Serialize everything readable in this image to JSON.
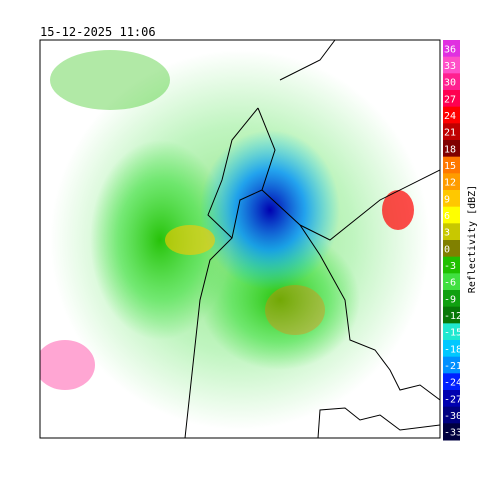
{
  "title": "15-12-2025 11:06",
  "colorbar": {
    "label": "Reflectivity [dBZ]",
    "levels": [
      {
        "value": 36,
        "color": "#e030e0"
      },
      {
        "value": 33,
        "color": "#ff50c8"
      },
      {
        "value": 30,
        "color": "#ff2090"
      },
      {
        "value": 27,
        "color": "#ff0050"
      },
      {
        "value": 24,
        "color": "#ff0000"
      },
      {
        "value": 21,
        "color": "#c00000"
      },
      {
        "value": 18,
        "color": "#800000"
      },
      {
        "value": 15,
        "color": "#ff7800"
      },
      {
        "value": 12,
        "color": "#ff9c00"
      },
      {
        "value": 9,
        "color": "#ffc800"
      },
      {
        "value": 6,
        "color": "#ffff00"
      },
      {
        "value": 3,
        "color": "#c8c800"
      },
      {
        "value": 0,
        "color": "#808000"
      },
      {
        "value": -3,
        "color": "#20c000"
      },
      {
        "value": -6,
        "color": "#40e040"
      },
      {
        "value": -9,
        "color": "#10a010"
      },
      {
        "value": -12,
        "color": "#087808"
      },
      {
        "value": -15,
        "color": "#20e8d0"
      },
      {
        "value": -18,
        "color": "#00c8ff"
      },
      {
        "value": -21,
        "color": "#0090ff"
      },
      {
        "value": -24,
        "color": "#0020ff"
      },
      {
        "value": -27,
        "color": "#0000b0"
      },
      {
        "value": -30,
        "color": "#000080"
      },
      {
        "value": -33,
        "color": "#000040"
      }
    ]
  }
}
